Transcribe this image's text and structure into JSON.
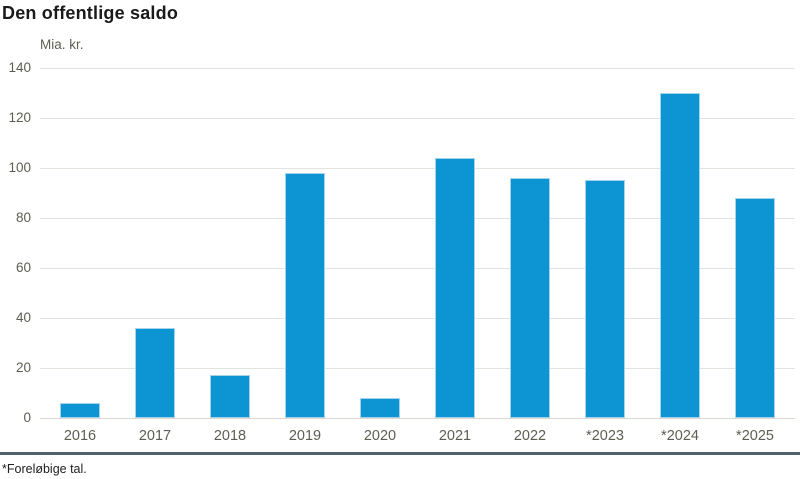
{
  "title": "Den offentlige saldo",
  "footnote": "*Foreløbige tal.",
  "chart_data": {
    "type": "bar",
    "title": "Den offentlige saldo",
    "unit_label": "Mia. kr.",
    "categories": [
      "2016",
      "2017",
      "2018",
      "2019",
      "2020",
      "2021",
      "2022",
      "*2023",
      "*2024",
      "*2025"
    ],
    "values": [
      6,
      36,
      17,
      98,
      8,
      104,
      96,
      95,
      130,
      88
    ],
    "xlabel": "",
    "ylabel": "Mia. kr.",
    "ylim": [
      0,
      140
    ],
    "ytick_step": 20,
    "yticks": [
      0,
      20,
      40,
      60,
      80,
      100,
      120,
      140
    ],
    "grid": "horizontal",
    "legend": "none",
    "footnote": "*Foreløbige tal.",
    "colors": {
      "bar": "#0d94d3",
      "bar_edge": "#a5d3eb",
      "gridline": "#e4e4de",
      "axis_text": "#5e5d52",
      "bottom_rule": "#51626b",
      "title_text": "#1a1a1a"
    }
  }
}
